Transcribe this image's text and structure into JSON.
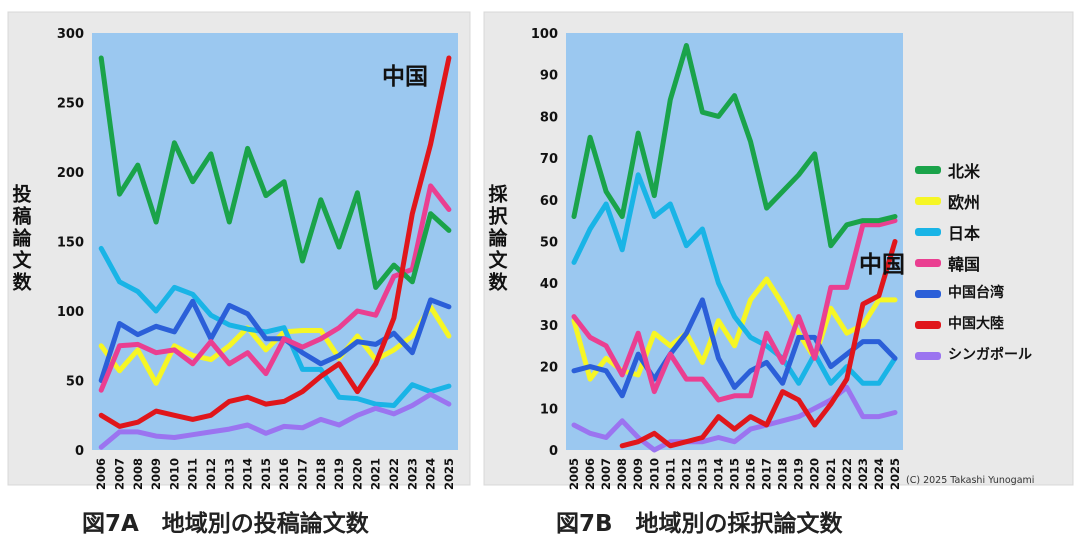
{
  "figure_titles": {
    "a": "図7A　地域別の投稿論文数",
    "b": "図7B　地域別の採択論文数"
  },
  "copyright": "(C) 2025 Takashi Yunogami",
  "legend": [
    {
      "label": "北米",
      "color": "#1aa34a"
    },
    {
      "label": "欧州",
      "color": "#f6f625"
    },
    {
      "label": "日本",
      "color": "#19b4e6"
    },
    {
      "label": "韓国",
      "color": "#ea3f91"
    },
    {
      "label": "中国台湾",
      "color": "#2b5fd8"
    },
    {
      "label": "中国大陸",
      "color": "#e0161b"
    },
    {
      "label": "シンガポール",
      "color": "#9b74f0"
    }
  ],
  "chart_data": [
    {
      "type": "line",
      "ylabel": "投稿論文数",
      "annotation": "中国",
      "background": "#9bc8f0",
      "ylim": [
        0,
        300
      ],
      "yticks": [
        0,
        50,
        100,
        150,
        200,
        250,
        300
      ],
      "x": [
        "2006",
        "2007",
        "2008",
        "2009",
        "2010",
        "2011",
        "2012",
        "2013",
        "2014",
        "2015",
        "2016",
        "2017",
        "2018",
        "2019",
        "2020",
        "2021",
        "2022",
        "2023",
        "2024",
        "2025"
      ],
      "series": [
        {
          "name": "欧州",
          "color": "#f6f625",
          "values": [
            75,
            57,
            72,
            48,
            75,
            68,
            65,
            75,
            88,
            72,
            85,
            86,
            86,
            66,
            82,
            65,
            72,
            82,
            103,
            82
          ]
        },
        {
          "name": "日本",
          "color": "#19b4e6",
          "values": [
            145,
            121,
            114,
            100,
            117,
            112,
            97,
            90,
            87,
            85,
            88,
            58,
            58,
            38,
            37,
            33,
            32,
            47,
            42,
            46
          ]
        },
        {
          "name": "シンガポール",
          "color": "#9b74f0",
          "values": [
            2,
            13,
            13,
            10,
            9,
            11,
            13,
            15,
            18,
            12,
            17,
            16,
            22,
            18,
            25,
            30,
            26,
            32,
            40,
            33
          ]
        },
        {
          "name": "中国台湾",
          "color": "#2b5fd8",
          "values": [
            50,
            91,
            83,
            89,
            85,
            107,
            80,
            104,
            98,
            80,
            80,
            70,
            62,
            68,
            78,
            76,
            84,
            70,
            108,
            103
          ]
        },
        {
          "name": "韓国",
          "color": "#ea3f91",
          "values": [
            43,
            75,
            76,
            70,
            72,
            62,
            78,
            62,
            70,
            55,
            80,
            74,
            80,
            88,
            100,
            97,
            125,
            130,
            190,
            173
          ]
        },
        {
          "name": "北米",
          "color": "#1aa34a",
          "values": [
            282,
            184,
            205,
            164,
            221,
            193,
            213,
            164,
            217,
            183,
            193,
            136,
            180,
            146,
            185,
            117,
            133,
            121,
            170,
            158
          ]
        },
        {
          "name": "中国大陸",
          "color": "#e0161b",
          "values": [
            25,
            17,
            20,
            28,
            25,
            22,
            25,
            35,
            38,
            33,
            35,
            42,
            53,
            62,
            42,
            62,
            95,
            170,
            220,
            282
          ]
        }
      ]
    },
    {
      "type": "line",
      "ylabel": "採択論文数",
      "annotation": "中国",
      "background": "#9bc8f0",
      "ylim": [
        0,
        100
      ],
      "yticks": [
        0,
        10,
        20,
        30,
        40,
        50,
        60,
        70,
        80,
        90,
        100
      ],
      "x": [
        "2005",
        "2006",
        "2007",
        "2008",
        "2009",
        "2010",
        "2011",
        "2012",
        "2013",
        "2014",
        "2015",
        "2016",
        "2017",
        "2018",
        "2019",
        "2020",
        "2021",
        "2022",
        "2023",
        "2024",
        "2025"
      ],
      "series": [
        {
          "name": "欧州",
          "color": "#f6f625",
          "values": [
            31,
            17,
            22,
            19,
            18,
            28,
            25,
            28,
            21,
            31,
            25,
            36,
            41,
            35,
            28,
            22,
            34,
            28,
            30,
            36,
            36
          ]
        },
        {
          "name": "日本",
          "color": "#19b4e6",
          "values": [
            45,
            53,
            59,
            48,
            66,
            56,
            59,
            49,
            53,
            40,
            32,
            27,
            25,
            22,
            16,
            23,
            16,
            20,
            16,
            16,
            22
          ]
        },
        {
          "name": "シンガポール",
          "color": "#9b74f0",
          "values": [
            6,
            4,
            3,
            7,
            3,
            0,
            2,
            2,
            2,
            3,
            2,
            5,
            6,
            7,
            8,
            10,
            12,
            15,
            8,
            8,
            9
          ]
        },
        {
          "name": "中国台湾",
          "color": "#2b5fd8",
          "values": [
            19,
            20,
            19,
            13,
            23,
            17,
            23,
            28,
            36,
            22,
            15,
            19,
            21,
            16,
            27,
            27,
            20,
            23,
            26,
            26,
            22
          ]
        },
        {
          "name": "韓国",
          "color": "#ea3f91",
          "values": [
            32,
            27,
            25,
            18,
            28,
            14,
            23,
            17,
            17,
            12,
            13,
            13,
            28,
            21,
            32,
            22,
            39,
            39,
            54,
            54,
            55
          ]
        },
        {
          "name": "北米",
          "color": "#1aa34a",
          "values": [
            56,
            75,
            62,
            56,
            76,
            61,
            84,
            97,
            81,
            80,
            85,
            74,
            58,
            62,
            66,
            71,
            49,
            54,
            55,
            55,
            56
          ]
        },
        {
          "name": "中国大陸",
          "color": "#e0161b",
          "values": [
            null,
            null,
            null,
            1,
            2,
            4,
            1,
            2,
            3,
            8,
            5,
            8,
            6,
            14,
            12,
            6,
            11,
            17,
            35,
            37,
            50
          ]
        }
      ]
    }
  ]
}
